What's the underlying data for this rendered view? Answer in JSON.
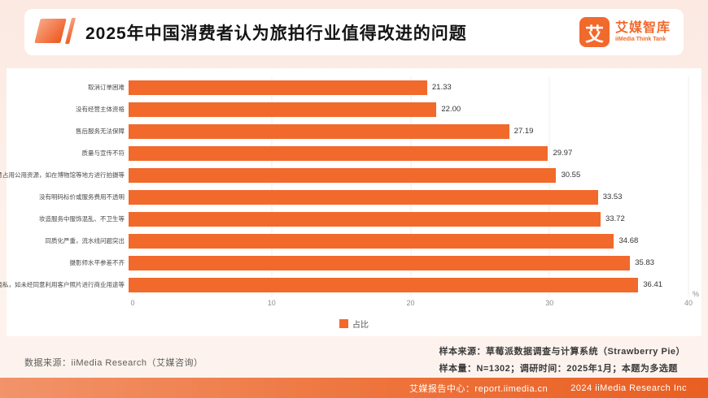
{
  "header": {
    "title": "2025年中国消费者认为旅拍行业值得改进的问题",
    "logo": {
      "glyph": "艾",
      "name": "艾媒智库",
      "subtitle": "iiMedia Think Tank"
    }
  },
  "chart_data": {
    "type": "bar",
    "orientation": "horizontal",
    "title": "2025年中国消费者认为旅拍行业值得改进的问题",
    "categories": [
      "取消订单困难",
      "没有经营主体资格",
      "售后服务无法保障",
      "质量与宣传不符",
      "随意占用公用资源，如在博物馆等地方进行拍摄等",
      "没有明码标价或服务费用不透明",
      "妆造服务中服饰混乱、不卫生等",
      "同质化严重，流水线问题突出",
      "摄影师水平参差不齐",
      "泄露客户隐私，如未经同意利用客户照片进行商业用途等"
    ],
    "values": [
      21.33,
      22.0,
      27.19,
      29.97,
      30.55,
      33.53,
      33.72,
      34.68,
      35.83,
      36.41
    ],
    "xlim": [
      0,
      40
    ],
    "xticks": [
      0,
      10,
      20,
      30,
      40
    ],
    "x_unit": "%",
    "legend": [
      "占比"
    ],
    "legend_position": "bottom",
    "grid": true
  },
  "notes": {
    "source_left": "数据来源：iiMedia Research（艾媒咨询）",
    "sample_source": "样本来源：草莓派数据调查与计算系统（Strawberry Pie）",
    "sample_info": "样本量：N=1302；调研时间：2025年1月；本题为多选题"
  },
  "footer": {
    "center": "艾媒报告中心：report.iimedia.cn",
    "right": "2024 iiMedia Research Inc"
  },
  "colors": {
    "accent": "#f2692c",
    "background": "#fbece7"
  }
}
